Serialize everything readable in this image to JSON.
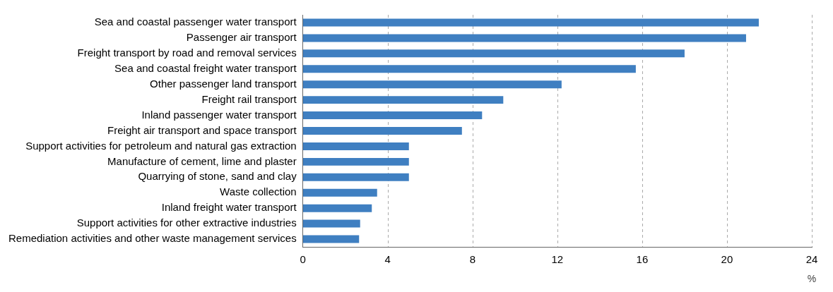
{
  "chart_data": {
    "type": "bar",
    "orientation": "horizontal",
    "xlabel": "%",
    "categories": [
      "Sea and coastal passenger water transport",
      "Passenger air transport",
      "Freight transport by road and removal services",
      "Sea and coastal freight water transport",
      "Other passenger land transport",
      "Freight rail transport",
      "Inland passenger water transport",
      "Freight air transport and space transport",
      "Support activities for petroleum and natural gas extraction",
      "Manufacture of cement, lime and plaster",
      "Quarrying of stone, sand and clay",
      "Waste collection",
      "Inland freight water transport",
      "Support activities for other extractive industries",
      "Remediation activities and other waste management services"
    ],
    "values": [
      21.5,
      20.9,
      18.0,
      15.7,
      12.2,
      9.45,
      8.45,
      7.5,
      5.0,
      5.0,
      5.0,
      3.5,
      3.25,
      2.7,
      2.65
    ],
    "color": "#3f7fc1",
    "xlim": [
      0,
      24
    ],
    "xticks": [
      0,
      4,
      8,
      12,
      16,
      20,
      24
    ],
    "grid": "x",
    "legend": false
  }
}
